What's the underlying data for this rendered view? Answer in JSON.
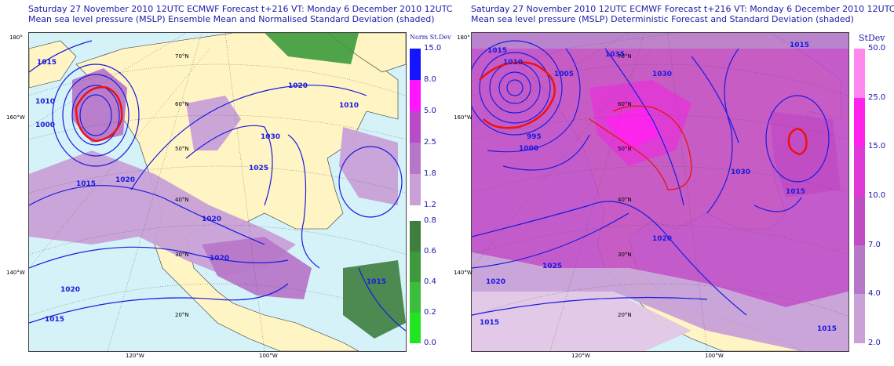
{
  "left_panel": {
    "title_line1": "Saturday 27 November 2010 12UTC ECMWF Forecast t+216  VT: Monday 6 December 2010 12UTC",
    "title_line2": "Mean sea level pressure (MSLP) Ensemble Mean and Normalised Standard Deviation (shaded)",
    "legend_title": "Norm St.Dev",
    "legend_upper": [
      {
        "label": "15.0",
        "color": "#1414ff"
      },
      {
        "label": "8.0",
        "color": "#ff14ff"
      },
      {
        "label": "5.0",
        "color": "#b94bc9"
      },
      {
        "label": "2.5",
        "color": "#b777c9"
      },
      {
        "label": "1.8",
        "color": "#c9a0d8"
      },
      {
        "label": "1.2",
        "color": "#ffffff"
      }
    ],
    "legend_lower": [
      {
        "label": "0.8",
        "color": "#3e7e3e"
      },
      {
        "label": "0.6",
        "color": "#3c9a3c"
      },
      {
        "label": "0.4",
        "color": "#3cbe3c"
      },
      {
        "label": "0.2",
        "color": "#22e522"
      },
      {
        "label": "0.0",
        "color": "#00ff00"
      }
    ],
    "isobars": [
      "1015",
      "1010",
      "1000",
      "1020",
      "1020",
      "1025",
      "1030",
      "1020",
      "1015",
      "1020",
      "1020",
      "1015",
      "1015",
      "1010"
    ],
    "lat_labels": [
      "20°N",
      "30°N",
      "40°N",
      "50°N",
      "60°N",
      "70°N"
    ],
    "lon_labels": [
      "180°",
      "160°W",
      "140°W",
      "120°W",
      "100°W"
    ]
  },
  "right_panel": {
    "title_line1": "Saturday 27 November 2010 12UTC ECMWF Forecast t+216  VT: Monday 6 December 2010 12UTC",
    "title_line2": "Mean sea level pressure (MSLP) Deterministic Forecast and Standard Deviation (shaded)",
    "legend_title": "StDev",
    "legend": [
      {
        "label": "50.0",
        "color": "#ff88ee"
      },
      {
        "label": "25.0",
        "color": "#ff22ee"
      },
      {
        "label": "15.0",
        "color": "#e03ad6"
      },
      {
        "label": "10.0",
        "color": "#c14bc4"
      },
      {
        "label": "7.0",
        "color": "#b777c9"
      },
      {
        "label": "4.0",
        "color": "#c9a0d8"
      },
      {
        "label": "2.0",
        "color": "#e1c6e6"
      }
    ],
    "isobars": [
      "1015",
      "1010",
      "1005",
      "995",
      "1000",
      "1020",
      "1025",
      "1035",
      "1030",
      "1015",
      "1020",
      "1015",
      "1015",
      "1030",
      "1015"
    ],
    "lat_labels": [
      "20°N",
      "30°N",
      "40°N",
      "50°N",
      "60°N",
      "70°N"
    ],
    "lon_labels": [
      "180°",
      "160°W",
      "140°W",
      "120°W",
      "100°W"
    ]
  },
  "colors": {
    "ocean": "#d4f2f8",
    "land": "#fff4c4",
    "isobar": "#1a1ae0",
    "highlight_contour": "#ee1111",
    "title_text": "#1a1aa8"
  }
}
